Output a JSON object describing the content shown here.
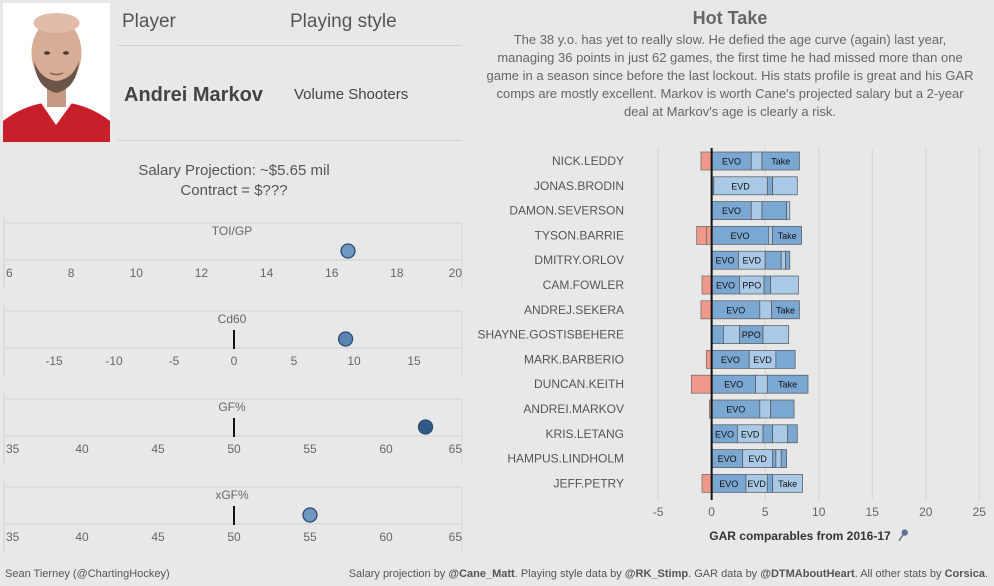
{
  "header": {
    "player_label": "Player",
    "style_label": "Playing style",
    "player_name": "Andrei Markov",
    "playing_style": "Volume Shooters"
  },
  "salary": {
    "line1": "Salary Projection: ~$5.65 mil",
    "line2": "Contract = $???"
  },
  "hot_take": {
    "title": "Hot Take",
    "lines": [
      "The 38 y.o. has yet to really slow. He defied the age curve (again) last year,",
      "managing 36 points in just 62 games, the first time he had missed more than one",
      "game in a season since before the last lockout. His stats profile is great and his GAR",
      "comps are mostly excellent. Markov is worth Cane's projected salary but a 2-year",
      "deal at Markov's age is clearly a risk."
    ]
  },
  "chart_data": [
    {
      "type": "dot",
      "title": "TOI/GP",
      "value": 16.5,
      "xlim": [
        6,
        20
      ],
      "ticks": [
        6,
        8,
        10,
        12,
        14,
        16,
        18,
        20
      ],
      "reference": null,
      "color": "#6e97c2"
    },
    {
      "type": "dot",
      "title": "Cd60",
      "value": 9.3,
      "xlim": [
        -19,
        19
      ],
      "ticks": [
        -15,
        -10,
        -5,
        0,
        5,
        10,
        15
      ],
      "reference": 0,
      "color": "#5a84b3"
    },
    {
      "type": "dot",
      "title": "GF%",
      "value": 62.6,
      "xlim": [
        35,
        65
      ],
      "ticks": [
        35,
        40,
        45,
        50,
        55,
        60,
        65
      ],
      "reference": 50,
      "color": "#2f5a8a"
    },
    {
      "type": "dot",
      "title": "xGF%",
      "value": 55,
      "xlim": [
        35,
        65
      ],
      "ticks": [
        35,
        40,
        45,
        50,
        55,
        60,
        65
      ],
      "reference": 50,
      "color": "#6e97c2"
    },
    {
      "type": "bar",
      "stacked": true,
      "xlabel": "GAR comparables from 2016-17",
      "xlim": [
        -8,
        26
      ],
      "ticks": [
        -5,
        0,
        5,
        10,
        15,
        20,
        25
      ],
      "colors": {
        "negative": "#f0998a",
        "positive": "#7ba7d3",
        "light": "#a9c9e6"
      },
      "players": [
        {
          "name": "NICK.LEDDY",
          "neg": [
            -1.0
          ],
          "pos": [
            {
              "v": 3.7,
              "label": "EVO"
            },
            {
              "v": 1.0,
              "label": ""
            },
            {
              "v": 3.5,
              "label": "Take"
            }
          ]
        },
        {
          "name": "JONAS.BRODIN",
          "neg": [],
          "pos": [
            {
              "v": 0.2,
              "label": ""
            },
            {
              "v": 5.0,
              "label": "EVD"
            },
            {
              "v": 0.5,
              "label": ""
            },
            {
              "v": 2.3,
              "label": ""
            }
          ]
        },
        {
          "name": "DAMON.SEVERSON",
          "neg": [],
          "pos": [
            {
              "v": 3.7,
              "label": "EVO"
            },
            {
              "v": 1.0,
              "label": ""
            },
            {
              "v": 2.3,
              "label": ""
            },
            {
              "v": 0.3,
              "label": ""
            }
          ]
        },
        {
          "name": "TYSON.BARRIE",
          "neg": [
            -0.5,
            -0.9
          ],
          "pos": [
            {
              "v": 5.3,
              "label": "EVO"
            },
            {
              "v": 0.4,
              "label": ""
            },
            {
              "v": 2.7,
              "label": "Take"
            }
          ]
        },
        {
          "name": "DMITRY.ORLOV",
          "neg": [],
          "pos": [
            {
              "v": 2.5,
              "label": "EVO"
            },
            {
              "v": 2.5,
              "label": "EVD"
            },
            {
              "v": 1.5,
              "label": ""
            },
            {
              "v": 0.4,
              "label": ""
            },
            {
              "v": 0.4,
              "label": ""
            }
          ]
        },
        {
          "name": "CAM.FOWLER",
          "neg": [
            -0.9
          ],
          "pos": [
            {
              "v": 2.6,
              "label": "EVO"
            },
            {
              "v": 2.3,
              "label": "PPO"
            },
            {
              "v": 0.6,
              "label": ""
            },
            {
              "v": 2.6,
              "label": ""
            }
          ]
        },
        {
          "name": "ANDREJ.SEKERA",
          "neg": [
            -1.0
          ],
          "pos": [
            {
              "v": 4.5,
              "label": "EVO"
            },
            {
              "v": 1.1,
              "label": ""
            },
            {
              "v": 2.6,
              "label": "Take"
            }
          ]
        },
        {
          "name": "SHAYNE.GOSTISBEHERE",
          "neg": [],
          "pos": [
            {
              "v": 1.1,
              "label": ""
            },
            {
              "v": 1.5,
              "label": ""
            },
            {
              "v": 2.2,
              "label": "PPO"
            },
            {
              "v": 2.4,
              "label": ""
            }
          ]
        },
        {
          "name": "MARK.BARBERIO",
          "neg": [
            -0.5
          ],
          "pos": [
            {
              "v": 3.5,
              "label": "EVO"
            },
            {
              "v": 2.5,
              "label": "EVD"
            },
            {
              "v": 1.8,
              "label": ""
            }
          ]
        },
        {
          "name": "DUNCAN.KEITH",
          "neg": [
            -1.9
          ],
          "pos": [
            {
              "v": 4.1,
              "label": "EVO"
            },
            {
              "v": 1.1,
              "label": ""
            },
            {
              "v": 3.8,
              "label": "Take"
            }
          ]
        },
        {
          "name": "ANDREI.MARKOV",
          "neg": [
            -0.2
          ],
          "pos": [
            {
              "v": 4.5,
              "label": "EVO"
            },
            {
              "v": 1.0,
              "label": ""
            },
            {
              "v": 2.2,
              "label": ""
            }
          ]
        },
        {
          "name": "KRIS.LETANG",
          "neg": [],
          "pos": [
            {
              "v": 2.4,
              "label": "EVO"
            },
            {
              "v": 2.4,
              "label": "EVD"
            },
            {
              "v": 0.9,
              "label": ""
            },
            {
              "v": 1.4,
              "label": ""
            },
            {
              "v": 0.9,
              "label": ""
            }
          ]
        },
        {
          "name": "HAMPUS.LINDHOLM",
          "neg": [],
          "pos": [
            {
              "v": 2.9,
              "label": "EVO"
            },
            {
              "v": 2.8,
              "label": "EVD"
            },
            {
              "v": 0.3,
              "label": ""
            },
            {
              "v": 0.5,
              "label": ""
            },
            {
              "v": 0.5,
              "label": ""
            }
          ]
        },
        {
          "name": "JEFF.PETRY",
          "neg": [
            -0.9
          ],
          "pos": [
            {
              "v": 3.2,
              "label": "EVO"
            },
            {
              "v": 2.0,
              "label": "EVD"
            },
            {
              "v": 0.5,
              "label": ""
            },
            {
              "v": 2.8,
              "label": "Take"
            }
          ]
        }
      ]
    }
  ],
  "footer": {
    "left": "Sean Tierney (@ChartingHockey)",
    "right_parts": [
      {
        "text": "Salary projection by ",
        "bold": false
      },
      {
        "text": "@Cane_Matt",
        "bold": true
      },
      {
        "text": ". Playing style data by ",
        "bold": false
      },
      {
        "text": "@RK_Stimp",
        "bold": true
      },
      {
        "text": ". GAR data by ",
        "bold": false
      },
      {
        "text": "@DTMAboutHeart",
        "bold": true
      },
      {
        "text": ". All other stats by ",
        "bold": false
      },
      {
        "text": "Corsica",
        "bold": true
      },
      {
        "text": ".",
        "bold": false
      }
    ]
  }
}
